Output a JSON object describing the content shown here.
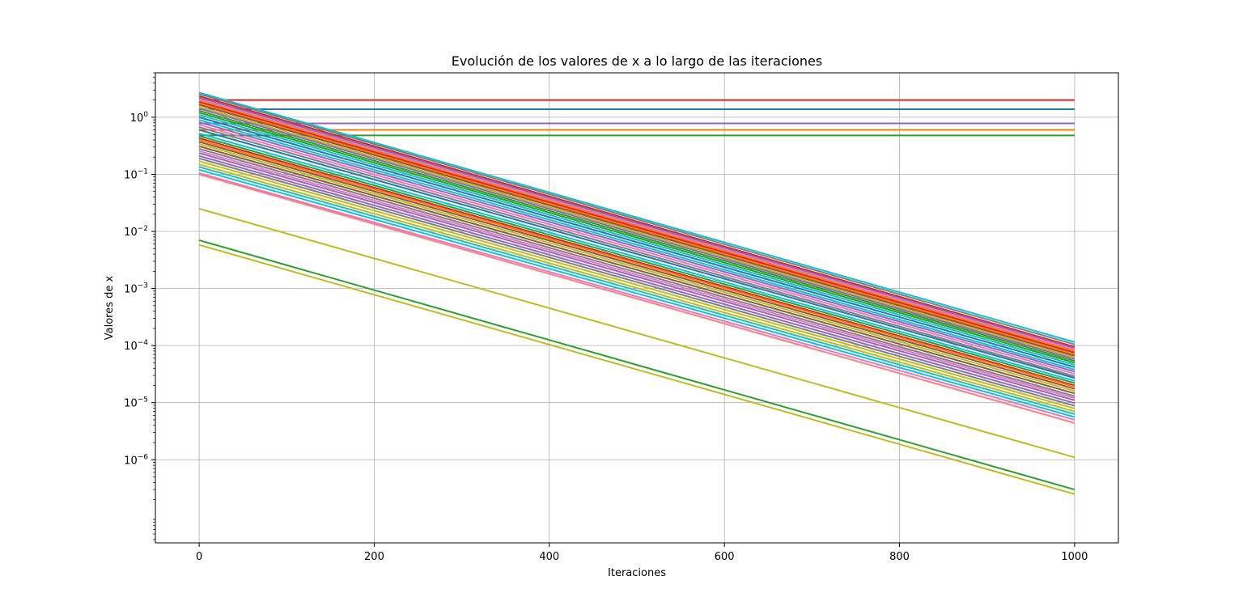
{
  "chart_data": {
    "type": "line",
    "title": "Evolución de los valores de x a lo largo de las iteraciones",
    "xlabel": "Iteraciones",
    "ylabel": "Valores de x",
    "xlim": [
      -50,
      1050
    ],
    "ylim": [
      3.5e-08,
      6
    ],
    "yscale": "log",
    "grid": true,
    "x_ticks": [
      0,
      200,
      400,
      600,
      800,
      1000
    ],
    "x_tick_labels": [
      "0",
      "200",
      "400",
      "600",
      "800",
      "1000"
    ],
    "y_ticks": [
      {
        "value": 1e-06,
        "base": "10",
        "exp": "−6"
      },
      {
        "value": 1e-05,
        "base": "10",
        "exp": "−5"
      },
      {
        "value": 0.0001,
        "base": "10",
        "exp": "−4"
      },
      {
        "value": 0.001,
        "base": "10",
        "exp": "−3"
      },
      {
        "value": 0.01,
        "base": "10",
        "exp": "−2"
      },
      {
        "value": 0.1,
        "base": "10",
        "exp": "−1"
      },
      {
        "value": 1,
        "base": "10",
        "exp": "0"
      }
    ],
    "series": [
      {
        "x": [
          0,
          1000
        ],
        "y": [
          2.0,
          2.0
        ],
        "color": "#d62728"
      },
      {
        "x": [
          0,
          1000
        ],
        "y": [
          1.38,
          1.38
        ],
        "color": "#1f77b4"
      },
      {
        "x": [
          0,
          1000
        ],
        "y": [
          0.78,
          0.78
        ],
        "color": "#9467bd"
      },
      {
        "x": [
          0,
          1000
        ],
        "y": [
          0.6,
          0.6
        ],
        "color": "#ff7f0e"
      },
      {
        "x": [
          0,
          1000
        ],
        "y": [
          0.48,
          0.48
        ],
        "color": "#2ca02c"
      },
      {
        "x": [
          0,
          1000
        ],
        "y": [
          2.7,
          0.000115
        ],
        "color": "#17becf"
      },
      {
        "x": [
          0,
          1000
        ],
        "y": [
          2.55,
          0.000105
        ],
        "color": "#7f7f7f"
      },
      {
        "x": [
          0,
          1000
        ],
        "y": [
          2.35,
          9.5e-05
        ],
        "color": "#d62728"
      },
      {
        "x": [
          0,
          1000
        ],
        "y": [
          2.2,
          9e-05
        ],
        "color": "#9467bd"
      },
      {
        "x": [
          0,
          1000
        ],
        "y": [
          2.05,
          8.5e-05
        ],
        "color": "#e377c2"
      },
      {
        "x": [
          0,
          1000
        ],
        "y": [
          1.95,
          8e-05
        ],
        "color": "#ff7f0e"
      },
      {
        "x": [
          0,
          1000
        ],
        "y": [
          1.85,
          7.5e-05
        ],
        "color": "#d62728"
      },
      {
        "x": [
          0,
          1000
        ],
        "y": [
          1.75,
          7e-05
        ],
        "color": "#ff7f0e"
      },
      {
        "x": [
          0,
          1000
        ],
        "y": [
          1.65,
          6.6e-05
        ],
        "color": "#8c564b"
      },
      {
        "x": [
          0,
          1000
        ],
        "y": [
          1.52,
          6.2e-05
        ],
        "color": "#bcbd22"
      },
      {
        "x": [
          0,
          1000
        ],
        "y": [
          1.42,
          5.8e-05
        ],
        "color": "#9467bd"
      },
      {
        "x": [
          0,
          1000
        ],
        "y": [
          1.3,
          5.4e-05
        ],
        "color": "#2ca02c"
      },
      {
        "x": [
          0,
          1000
        ],
        "y": [
          1.2,
          5e-05
        ],
        "color": "#2ca02c"
      },
      {
        "x": [
          0,
          1000
        ],
        "y": [
          1.1,
          4.6e-05
        ],
        "color": "#17becf"
      },
      {
        "x": [
          0,
          1000
        ],
        "y": [
          1.0,
          4.2e-05
        ],
        "color": "#1f77b4"
      },
      {
        "x": [
          0,
          1000
        ],
        "y": [
          0.9,
          3.8e-05
        ],
        "color": "#17becf"
      },
      {
        "x": [
          0,
          1000
        ],
        "y": [
          0.82,
          3.5e-05
        ],
        "color": "#9467bd"
      },
      {
        "x": [
          0,
          1000
        ],
        "y": [
          0.74,
          3.2e-05
        ],
        "color": "#e377c2"
      },
      {
        "x": [
          0,
          1000
        ],
        "y": [
          0.67,
          2.9e-05
        ],
        "color": "#7f7f7f"
      },
      {
        "x": [
          0,
          1000
        ],
        "y": [
          0.6,
          2.7e-05
        ],
        "color": "#1f77b4"
      },
      {
        "x": [
          0,
          1000
        ],
        "y": [
          0.52,
          2.4e-05
        ],
        "color": "#17becf"
      },
      {
        "x": [
          0,
          1000
        ],
        "y": [
          0.47,
          2.2e-05
        ],
        "color": "#2ca02c"
      },
      {
        "x": [
          0,
          1000
        ],
        "y": [
          0.43,
          2e-05
        ],
        "color": "#d62728"
      },
      {
        "x": [
          0,
          1000
        ],
        "y": [
          0.4,
          1.9e-05
        ],
        "color": "#ff7f0e"
      },
      {
        "x": [
          0,
          1000
        ],
        "y": [
          0.37,
          1.75e-05
        ],
        "color": "#8c564b"
      },
      {
        "x": [
          0,
          1000
        ],
        "y": [
          0.34,
          1.6e-05
        ],
        "color": "#bcbd22"
      },
      {
        "x": [
          0,
          1000
        ],
        "y": [
          0.31,
          1.45e-05
        ],
        "color": "#8c564b"
      },
      {
        "x": [
          0,
          1000
        ],
        "y": [
          0.28,
          1.3e-05
        ],
        "color": "#7f7f7f"
      },
      {
        "x": [
          0,
          1000
        ],
        "y": [
          0.255,
          1.2e-05
        ],
        "color": "#e377c2"
      },
      {
        "x": [
          0,
          1000
        ],
        "y": [
          0.235,
          1.1e-05
        ],
        "color": "#9467bd"
      },
      {
        "x": [
          0,
          1000
        ],
        "y": [
          0.21,
          9.8e-06
        ],
        "color": "#9467bd"
      },
      {
        "x": [
          0,
          1000
        ],
        "y": [
          0.19,
          8.8e-06
        ],
        "color": "#7f7f7f"
      },
      {
        "x": [
          0,
          1000
        ],
        "y": [
          0.17,
          7.9e-06
        ],
        "color": "#bcbd22"
      },
      {
        "x": [
          0,
          1000
        ],
        "y": [
          0.15,
          7e-06
        ],
        "color": "#bcbd22"
      },
      {
        "x": [
          0,
          1000
        ],
        "y": [
          0.135,
          6.3e-06
        ],
        "color": "#17becf"
      },
      {
        "x": [
          0,
          1000
        ],
        "y": [
          0.12,
          5.6e-06
        ],
        "color": "#17becf"
      },
      {
        "x": [
          0,
          1000
        ],
        "y": [
          0.105,
          5e-06
        ],
        "color": "#e377c2"
      },
      {
        "x": [
          0,
          1000
        ],
        "y": [
          0.1,
          4.4e-06
        ],
        "color": "#ff7f7f"
      },
      {
        "x": [
          0,
          1000
        ],
        "y": [
          0.025,
          1.1e-06
        ],
        "color": "#bcbd22"
      },
      {
        "x": [
          0,
          1000
        ],
        "y": [
          0.007,
          3e-07
        ],
        "color": "#2ca02c"
      },
      {
        "x": [
          0,
          1000
        ],
        "y": [
          0.0058,
          2.5e-07
        ],
        "color": "#bcbd22"
      }
    ]
  }
}
